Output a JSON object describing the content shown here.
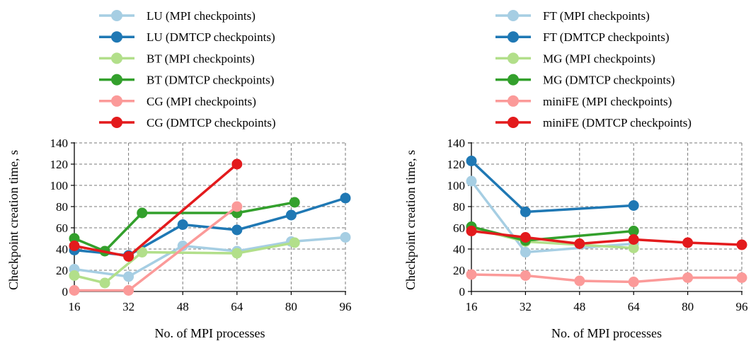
{
  "chart_data": [
    {
      "type": "line",
      "xlabel": "No. of MPI processes",
      "ylabel": "Checkpoint creation time, s",
      "xlim": [
        16,
        96
      ],
      "ylim": [
        0,
        140
      ],
      "xticks": [
        "16",
        "32",
        "48",
        "64",
        "80",
        "96"
      ],
      "yticks": [
        "0",
        "20",
        "40",
        "60",
        "80",
        "100",
        "120",
        "140"
      ],
      "grid": true,
      "legend_position": "above",
      "series": [
        {
          "name": "LU (MPI checkpoints)",
          "color": "#a6cee3",
          "x": [
            16,
            32,
            48,
            64,
            80,
            96
          ],
          "y": [
            21,
            14,
            43,
            38,
            47,
            51
          ]
        },
        {
          "name": "LU (DMTCP checkpoints)",
          "color": "#1f78b4",
          "x": [
            16,
            32,
            48,
            64,
            80,
            96
          ],
          "y": [
            39,
            34,
            63,
            58,
            72,
            88
          ]
        },
        {
          "name": "BT (MPI checkpoints)",
          "color": "#b2df8a",
          "x": [
            16,
            25,
            36,
            64,
            81
          ],
          "y": [
            15,
            8,
            37,
            36,
            46
          ]
        },
        {
          "name": "BT (DMTCP checkpoints)",
          "color": "#33a02c",
          "x": [
            16,
            25,
            36,
            64,
            81
          ],
          "y": [
            50,
            38,
            74,
            74,
            84
          ]
        },
        {
          "name": "CG (MPI checkpoints)",
          "color": "#fb9a99",
          "x": [
            16,
            32,
            64
          ],
          "y": [
            1,
            1,
            80
          ]
        },
        {
          "name": "CG (DMTCP checkpoints)",
          "color": "#e31a1c",
          "x": [
            16,
            32,
            64
          ],
          "y": [
            43,
            33,
            120
          ]
        }
      ]
    },
    {
      "type": "line",
      "xlabel": "No. of MPI processes",
      "ylabel": "Checkpoint creation time, s",
      "xlim": [
        16,
        96
      ],
      "ylim": [
        0,
        140
      ],
      "xticks": [
        "16",
        "32",
        "48",
        "64",
        "80",
        "96"
      ],
      "yticks": [
        "0",
        "20",
        "40",
        "60",
        "80",
        "100",
        "120",
        "140"
      ],
      "grid": true,
      "legend_position": "above",
      "series": [
        {
          "name": "FT (MPI checkpoints)",
          "color": "#a6cee3",
          "x": [
            16,
            32,
            64
          ],
          "y": [
            104,
            37,
            45
          ]
        },
        {
          "name": "FT (DMTCP checkpoints)",
          "color": "#1f78b4",
          "x": [
            16,
            32,
            64
          ],
          "y": [
            123,
            75,
            81
          ]
        },
        {
          "name": "MG (MPI checkpoints)",
          "color": "#b2df8a",
          "x": [
            16,
            32,
            64
          ],
          "y": [
            60,
            47,
            41
          ]
        },
        {
          "name": "MG (DMTCP checkpoints)",
          "color": "#33a02c",
          "x": [
            16,
            32,
            64
          ],
          "y": [
            61,
            48,
            57
          ]
        },
        {
          "name": "miniFE (MPI checkpoints)",
          "color": "#fb9a99",
          "x": [
            16,
            32,
            48,
            64,
            80,
            96
          ],
          "y": [
            16,
            15,
            10,
            9,
            13,
            13
          ]
        },
        {
          "name": "miniFE (DMTCP checkpoints)",
          "color": "#e31a1c",
          "x": [
            16,
            32,
            48,
            64,
            80,
            96
          ],
          "y": [
            57,
            51,
            45,
            49,
            46,
            44
          ]
        }
      ]
    }
  ]
}
